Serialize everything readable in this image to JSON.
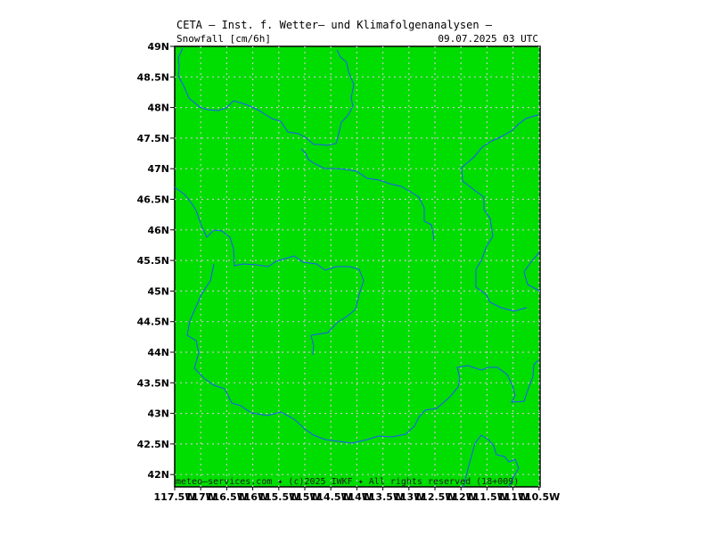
{
  "header": {
    "title": "CETA — Inst. f. Wetter— und Klimafolgenanalysen —",
    "variable": "Snowfall [cm/6h]",
    "datetime": "09.07.2025 03 UTC"
  },
  "map": {
    "fill_color": "#00dd00",
    "border_color": "#1f56ff",
    "grid_color": "#c8c8c8",
    "lat_labels": [
      "49N",
      "48.5N",
      "48N",
      "47.5N",
      "47N",
      "46.5N",
      "46N",
      "45.5N",
      "45N",
      "44.5N",
      "44N",
      "43.5N",
      "43N",
      "42.5N",
      "42N"
    ],
    "lon_labels": [
      "117.5W",
      "117W",
      "116.5W",
      "116W",
      "115.5W",
      "115W",
      "114.5W",
      "114W",
      "113.5W",
      "113W",
      "112.5W",
      "112W",
      "111.5W",
      "111W",
      "110.5W"
    ]
  },
  "footer": {
    "credit": "meteo—services.com ✦ (c)2025 IWKF ✦ All rights reserved (18+009)"
  }
}
